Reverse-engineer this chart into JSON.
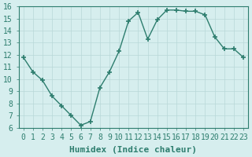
{
  "x": [
    0,
    1,
    2,
    3,
    4,
    5,
    6,
    7,
    8,
    9,
    10,
    11,
    12,
    13,
    14,
    15,
    16,
    17,
    18,
    19,
    20,
    21,
    22,
    23
  ],
  "y": [
    11.8,
    10.6,
    9.9,
    8.6,
    7.8,
    7.0,
    6.2,
    6.5,
    9.3,
    10.6,
    12.3,
    14.8,
    15.5,
    13.3,
    14.9,
    15.7,
    15.7,
    15.6,
    15.6,
    15.3,
    13.5,
    12.5,
    12.5,
    11.8
  ],
  "xlabel": "Humidex (Indice chaleur)",
  "xlim": [
    -0.5,
    23.5
  ],
  "ylim": [
    6,
    16
  ],
  "yticks": [
    6,
    7,
    8,
    9,
    10,
    11,
    12,
    13,
    14,
    15,
    16
  ],
  "xticks": [
    0,
    1,
    2,
    3,
    4,
    5,
    6,
    7,
    8,
    9,
    10,
    11,
    12,
    13,
    14,
    15,
    16,
    17,
    18,
    19,
    20,
    21,
    22,
    23
  ],
  "line_color": "#2d7d6e",
  "bg_color": "#d6eeee",
  "grid_color": "#b8d8d8",
  "label_color": "#2d7d6e",
  "xlabel_fontsize": 8,
  "tick_fontsize": 7
}
